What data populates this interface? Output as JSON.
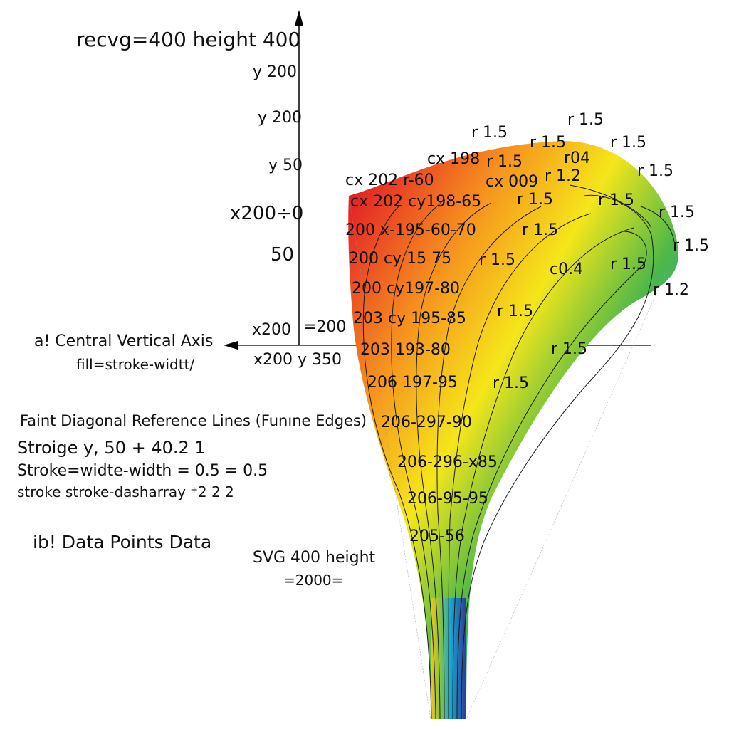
{
  "title": "recvg=400 height 400",
  "axis_labels": {
    "y1": "y 200",
    "y2": "y 200",
    "y3": "y 50",
    "x_mark": "x200÷0",
    "fifty": "50",
    "x200": "x200",
    "eq200": "=200",
    "x200y350": "x200 y 350"
  },
  "notes": {
    "a_title": "a! Central Vertical Axis",
    "a_sub": "fill=stroke-widtt/",
    "diag_title": "Faint Diagonal Reference Lines (Funıne Edges)",
    "diag_line1": "Stroige y, 50 + 40.2 1",
    "diag_line2": "Stroke=widte-width = 0.5 = 0.5",
    "diag_line3": "stroke stroke-dasharray ⁺2 2 2",
    "b_title": "ib! Data Points Data",
    "svg_note1": "SVG 400 height",
    "svg_note2": "=2000="
  },
  "shape_labels": {
    "l1": "cx 202 r-60",
    "l2": "cx 198",
    "l3": "cx 202 cy198-65",
    "l4": "200 x-195-60-70",
    "l5": "200 cy 15 75",
    "l6": "200 cy197-80",
    "l7": "203 cy 195-85",
    "l8": "203 193-80",
    "l9": "206 197-95",
    "l10": "206-297-90",
    "l11": "206-296-x85",
    "l12": "206-95-95",
    "l13": "205-56"
  },
  "radius_labels": {
    "r1": "r 1.5",
    "r2": "r 1.5",
    "r3": "r 1.5",
    "r4": "r 1.5",
    "r5": "r04",
    "r6": "r 1.5",
    "r7": "cx 009",
    "r8": "r 1.2",
    "r9": "r 1.5",
    "r10": "r 1.5",
    "r11": "r 1.5",
    "r12": "r 1.5",
    "r13": "r 1.5",
    "r14": "r 1.5",
    "r15": "c0.4",
    "r16": "r 1.5",
    "r17": "r 1.2",
    "r18": "r 1.5",
    "r19": "r 1.5",
    "r20": "r 1.5",
    "r21": "r 1.5",
    "r22": "r 1.5"
  },
  "colors": {
    "top": "#e41e26",
    "orange": "#f6921e",
    "yellow": "#f5e61a",
    "green": "#4cb848",
    "cyan": "#1aa7cf",
    "blue": "#2e3a97"
  }
}
